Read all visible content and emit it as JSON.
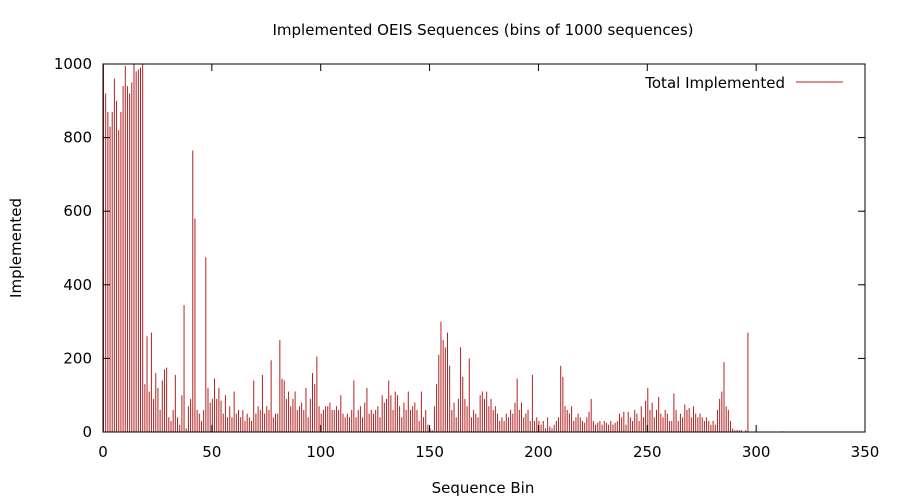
{
  "chart_data": {
    "type": "bar",
    "title": "Implemented OEIS Sequences (bins of 1000 sequences)",
    "xlabel": "Sequence Bin",
    "ylabel": "Implemented",
    "xlim": [
      0,
      350
    ],
    "ylim": [
      0,
      1000
    ],
    "xticks": [
      "0",
      "50",
      "100",
      "150",
      "200",
      "250",
      "300",
      "350"
    ],
    "yticks": [
      "0",
      "200",
      "400",
      "600",
      "800",
      "1000"
    ],
    "legend": {
      "position": "top-right"
    },
    "grid": false,
    "series": [
      {
        "name": "Total Implemented",
        "color": "#b22222",
        "x_start": 0,
        "values": [
          1000,
          920,
          870,
          830,
          870,
          960,
          900,
          820,
          870,
          940,
          995,
          940,
          920,
          950,
          1000,
          980,
          985,
          990,
          1000,
          130,
          260,
          110,
          270,
          90,
          160,
          120,
          60,
          140,
          170,
          175,
          40,
          30,
          60,
          155,
          40,
          20,
          100,
          345,
          10,
          70,
          90,
          765,
          580,
          60,
          50,
          30,
          60,
          475,
          120,
          80,
          90,
          145,
          90,
          120,
          85,
          50,
          100,
          40,
          70,
          40,
          110,
          50,
          60,
          40,
          60,
          30,
          50,
          40,
          30,
          140,
          50,
          70,
          60,
          155,
          50,
          70,
          60,
          195,
          40,
          50,
          50,
          250,
          145,
          140,
          90,
          110,
          70,
          90,
          110,
          60,
          70,
          80,
          60,
          120,
          40,
          90,
          160,
          130,
          205,
          70,
          50,
          60,
          70,
          70,
          80,
          60,
          60,
          70,
          60,
          100,
          50,
          40,
          50,
          40,
          60,
          140,
          40,
          60,
          70,
          40,
          80,
          120,
          50,
          60,
          50,
          60,
          70,
          40,
          100,
          80,
          90,
          140,
          100,
          60,
          110,
          100,
          70,
          40,
          80,
          60,
          110,
          60,
          70,
          80,
          60,
          30,
          110,
          40,
          60,
          20,
          10,
          5,
          70,
          130,
          210,
          300,
          250,
          230,
          270,
          180,
          60,
          80,
          40,
          90,
          230,
          150,
          90,
          70,
          200,
          40,
          60,
          50,
          40,
          100,
          110,
          90,
          110,
          70,
          90,
          60,
          70,
          50,
          30,
          40,
          30,
          50,
          40,
          60,
          50,
          80,
          145,
          60,
          80,
          40,
          50,
          60,
          30,
          155,
          30,
          40,
          30,
          20,
          30,
          10,
          40,
          15,
          10,
          20,
          30,
          40,
          180,
          150,
          70,
          60,
          50,
          70,
          30,
          40,
          50,
          40,
          30,
          25,
          40,
          55,
          90,
          30,
          20,
          25,
          30,
          20,
          30,
          25,
          20,
          30,
          20,
          25,
          30,
          50,
          40,
          55,
          20,
          55,
          40,
          30,
          60,
          50,
          30,
          70,
          40,
          85,
          120,
          60,
          80,
          40,
          60,
          95,
          50,
          40,
          60,
          50,
          30,
          30,
          105,
          60,
          30,
          50,
          40,
          75,
          60,
          65,
          40,
          70,
          50,
          40,
          50,
          40,
          30,
          40,
          30,
          20,
          30,
          20,
          60,
          90,
          110,
          190,
          70,
          60,
          30,
          10,
          5,
          5,
          5,
          5,
          0,
          5,
          270,
          0,
          0,
          0,
          0,
          0,
          0,
          0,
          0,
          0,
          0,
          0,
          0,
          0,
          0,
          0,
          2,
          0,
          0,
          1,
          0
        ]
      }
    ]
  }
}
